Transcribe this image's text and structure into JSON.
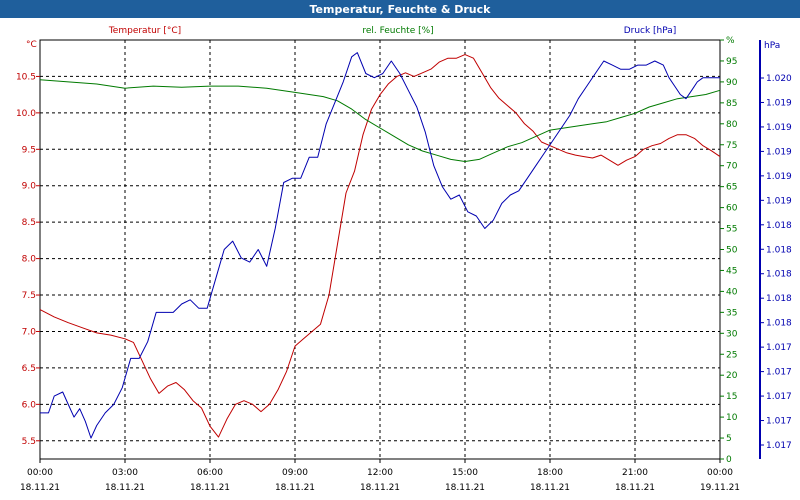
{
  "window": {
    "title": "Temperatur, Feuchte & Druck"
  },
  "colors": {
    "temperature": "#c00000",
    "humidity": "#007a00",
    "pressure": "#0000b0",
    "grid": "#000000",
    "titlebar": "#1f5f9c"
  },
  "chart_data": {
    "type": "line",
    "title": "Temperatur, Feuchte & Druck",
    "x": {
      "label": "",
      "range_hours": [
        0,
        24
      ],
      "ticks": [
        {
          "hour": 0,
          "time": "00:00",
          "date": "18.11.21"
        },
        {
          "hour": 3,
          "time": "03:00",
          "date": "18.11.21"
        },
        {
          "hour": 6,
          "time": "06:00",
          "date": "18.11.21"
        },
        {
          "hour": 9,
          "time": "09:00",
          "date": "18.11.21"
        },
        {
          "hour": 12,
          "time": "12:00",
          "date": "18.11.21"
        },
        {
          "hour": 15,
          "time": "15:00",
          "date": "18.11.21"
        },
        {
          "hour": 18,
          "time": "18:00",
          "date": "18.11.21"
        },
        {
          "hour": 21,
          "time": "21:00",
          "date": "18.11.21"
        },
        {
          "hour": 24,
          "time": "00:00",
          "date": "19.11.21"
        }
      ]
    },
    "axes": {
      "temperature": {
        "unit": "°C",
        "legend": "Temperatur [°C]",
        "range": [
          5.25,
          11.0
        ],
        "ticks": [
          "5.5",
          "6.0",
          "6.5",
          "7.0",
          "7.5",
          "8.0",
          "8.5",
          "9.0",
          "9.5",
          "10.0",
          "10.5"
        ]
      },
      "humidity": {
        "unit": "%",
        "legend": "rel. Feuchte [%]",
        "range": [
          0,
          100
        ],
        "ticks": [
          "0",
          "5",
          "10",
          "15",
          "20",
          "25",
          "30",
          "35",
          "40",
          "45",
          "50",
          "55",
          "60",
          "65",
          "70",
          "75",
          "80",
          "85",
          "90",
          "95",
          "%"
        ]
      },
      "pressure": {
        "unit": "hPa",
        "legend": "Druck [hPa]",
        "ticks": [
          "1.017",
          "1.017",
          "1.017",
          "1.017",
          "1.017",
          "1.018",
          "1.018",
          "1.018",
          "1.018",
          "1.018",
          "1.019",
          "1.019",
          "1.019",
          "1.019",
          "1.019",
          "1.020"
        ]
      }
    },
    "series": [
      {
        "name": "Temperatur [°C]",
        "axis": "temperature",
        "points": [
          [
            0,
            7.3
          ],
          [
            0.5,
            7.2
          ],
          [
            1,
            7.12
          ],
          [
            1.5,
            7.05
          ],
          [
            2,
            6.98
          ],
          [
            2.5,
            6.95
          ],
          [
            3,
            6.9
          ],
          [
            3.3,
            6.85
          ],
          [
            3.6,
            6.6
          ],
          [
            3.9,
            6.35
          ],
          [
            4.2,
            6.15
          ],
          [
            4.5,
            6.25
          ],
          [
            4.8,
            6.3
          ],
          [
            5.1,
            6.2
          ],
          [
            5.4,
            6.05
          ],
          [
            5.7,
            5.95
          ],
          [
            6.0,
            5.7
          ],
          [
            6.3,
            5.55
          ],
          [
            6.6,
            5.8
          ],
          [
            6.9,
            6.0
          ],
          [
            7.2,
            6.05
          ],
          [
            7.5,
            6.0
          ],
          [
            7.8,
            5.9
          ],
          [
            8.1,
            6.0
          ],
          [
            8.4,
            6.2
          ],
          [
            8.7,
            6.45
          ],
          [
            9.0,
            6.8
          ],
          [
            9.3,
            6.9
          ],
          [
            9.6,
            7.0
          ],
          [
            9.9,
            7.1
          ],
          [
            10.2,
            7.5
          ],
          [
            10.5,
            8.2
          ],
          [
            10.8,
            8.9
          ],
          [
            11.1,
            9.2
          ],
          [
            11.4,
            9.7
          ],
          [
            11.7,
            10.05
          ],
          [
            12.0,
            10.25
          ],
          [
            12.3,
            10.4
          ],
          [
            12.6,
            10.5
          ],
          [
            12.9,
            10.55
          ],
          [
            13.2,
            10.5
          ],
          [
            13.5,
            10.55
          ],
          [
            13.8,
            10.6
          ],
          [
            14.1,
            10.7
          ],
          [
            14.4,
            10.75
          ],
          [
            14.7,
            10.75
          ],
          [
            15.0,
            10.8
          ],
          [
            15.3,
            10.75
          ],
          [
            15.6,
            10.55
          ],
          [
            15.9,
            10.35
          ],
          [
            16.2,
            10.2
          ],
          [
            16.5,
            10.1
          ],
          [
            16.8,
            10.0
          ],
          [
            17.1,
            9.85
          ],
          [
            17.4,
            9.75
          ],
          [
            17.7,
            9.6
          ],
          [
            18.0,
            9.55
          ],
          [
            18.3,
            9.5
          ],
          [
            18.6,
            9.45
          ],
          [
            18.9,
            9.42
          ],
          [
            19.2,
            9.4
          ],
          [
            19.5,
            9.38
          ],
          [
            19.8,
            9.42
          ],
          [
            20.1,
            9.35
          ],
          [
            20.4,
            9.28
          ],
          [
            20.7,
            9.35
          ],
          [
            21.0,
            9.4
          ],
          [
            21.3,
            9.5
          ],
          [
            21.6,
            9.55
          ],
          [
            21.9,
            9.58
          ],
          [
            22.2,
            9.65
          ],
          [
            22.5,
            9.7
          ],
          [
            22.8,
            9.7
          ],
          [
            23.1,
            9.65
          ],
          [
            23.4,
            9.55
          ],
          [
            23.7,
            9.48
          ],
          [
            24.0,
            9.4
          ]
        ]
      },
      {
        "name": "rel. Feuchte [%]",
        "axis": "humidity",
        "points": [
          [
            0,
            90.5
          ],
          [
            1,
            90.0
          ],
          [
            2,
            89.5
          ],
          [
            3,
            88.5
          ],
          [
            4,
            89.0
          ],
          [
            5,
            88.7
          ],
          [
            6,
            89.0
          ],
          [
            7,
            89.0
          ],
          [
            8,
            88.5
          ],
          [
            9,
            87.5
          ],
          [
            10,
            86.5
          ],
          [
            10.5,
            85.5
          ],
          [
            11,
            83.5
          ],
          [
            11.5,
            81.0
          ],
          [
            12,
            79.0
          ],
          [
            12.5,
            77.0
          ],
          [
            13,
            75.0
          ],
          [
            13.5,
            73.5
          ],
          [
            14,
            72.5
          ],
          [
            14.5,
            71.5
          ],
          [
            15,
            71.0
          ],
          [
            15.5,
            71.5
          ],
          [
            16,
            73.0
          ],
          [
            16.5,
            74.5
          ],
          [
            17,
            75.5
          ],
          [
            17.5,
            77.0
          ],
          [
            18,
            78.5
          ],
          [
            18.5,
            79.0
          ],
          [
            19,
            79.5
          ],
          [
            19.5,
            80.0
          ],
          [
            20,
            80.5
          ],
          [
            20.5,
            81.5
          ],
          [
            21,
            82.5
          ],
          [
            21.5,
            84.0
          ],
          [
            22,
            85.0
          ],
          [
            22.5,
            86.0
          ],
          [
            23,
            86.5
          ],
          [
            23.5,
            87.0
          ],
          [
            24,
            88.0
          ]
        ]
      },
      {
        "name": "Druck [hPa]",
        "axis": "pressure",
        "points": [
          [
            0,
            11
          ],
          [
            0.3,
            11
          ],
          [
            0.5,
            15
          ],
          [
            0.8,
            16
          ],
          [
            1.0,
            13
          ],
          [
            1.2,
            10
          ],
          [
            1.4,
            12
          ],
          [
            1.6,
            9
          ],
          [
            1.8,
            5
          ],
          [
            2.0,
            8
          ],
          [
            2.3,
            11
          ],
          [
            2.6,
            13
          ],
          [
            2.9,
            17
          ],
          [
            3.2,
            24
          ],
          [
            3.5,
            24
          ],
          [
            3.8,
            28
          ],
          [
            4.1,
            35
          ],
          [
            4.4,
            35
          ],
          [
            4.7,
            35
          ],
          [
            5.0,
            37
          ],
          [
            5.3,
            38
          ],
          [
            5.6,
            36
          ],
          [
            5.9,
            36
          ],
          [
            6.2,
            43
          ],
          [
            6.5,
            50
          ],
          [
            6.8,
            52
          ],
          [
            7.1,
            48
          ],
          [
            7.4,
            47
          ],
          [
            7.7,
            50
          ],
          [
            8.0,
            46
          ],
          [
            8.3,
            55
          ],
          [
            8.6,
            66
          ],
          [
            8.9,
            67
          ],
          [
            9.2,
            67
          ],
          [
            9.5,
            72
          ],
          [
            9.8,
            72
          ],
          [
            10.1,
            80
          ],
          [
            10.4,
            85
          ],
          [
            10.7,
            90
          ],
          [
            11.0,
            96
          ],
          [
            11.2,
            97
          ],
          [
            11.5,
            92
          ],
          [
            11.8,
            91
          ],
          [
            12.1,
            92
          ],
          [
            12.4,
            95
          ],
          [
            12.7,
            92
          ],
          [
            13.0,
            88
          ],
          [
            13.3,
            84
          ],
          [
            13.6,
            78
          ],
          [
            13.9,
            70
          ],
          [
            14.2,
            65
          ],
          [
            14.5,
            62
          ],
          [
            14.8,
            63
          ],
          [
            15.1,
            59
          ],
          [
            15.4,
            58
          ],
          [
            15.7,
            55
          ],
          [
            16.0,
            57
          ],
          [
            16.3,
            61
          ],
          [
            16.6,
            63
          ],
          [
            16.9,
            64
          ],
          [
            17.2,
            67
          ],
          [
            17.5,
            70
          ],
          [
            17.8,
            73
          ],
          [
            18.1,
            76
          ],
          [
            18.4,
            79
          ],
          [
            18.7,
            82
          ],
          [
            19.0,
            86
          ],
          [
            19.3,
            89
          ],
          [
            19.6,
            92
          ],
          [
            19.9,
            95
          ],
          [
            20.2,
            94
          ],
          [
            20.5,
            93
          ],
          [
            20.8,
            93
          ],
          [
            21.1,
            94
          ],
          [
            21.4,
            94
          ],
          [
            21.7,
            95
          ],
          [
            22.0,
            94
          ],
          [
            22.2,
            91
          ],
          [
            22.4,
            89
          ],
          [
            22.6,
            87
          ],
          [
            22.8,
            86
          ],
          [
            23.0,
            88
          ],
          [
            23.2,
            90
          ],
          [
            23.4,
            91
          ],
          [
            23.6,
            91
          ],
          [
            23.8,
            91
          ],
          [
            24.0,
            91
          ]
        ]
      }
    ]
  }
}
